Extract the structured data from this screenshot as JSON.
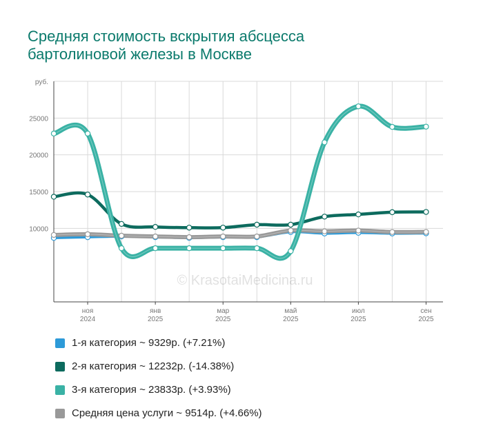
{
  "title_lines": [
    "Средняя стоимость вскрытия абсцесса",
    "бартолиновой железы в Москве"
  ],
  "watermark": "© KrasotaiMedicina.ru",
  "colors": {
    "title": "#0b7a6c",
    "grid": "#d9d9d9",
    "axis": "#444444",
    "tick": "#777777",
    "cat1": "#2d9ad8",
    "cat2": "#0d6b5e",
    "cat3": "#3ab2a5",
    "avg": "#999999"
  },
  "chart_data": {
    "type": "line",
    "title": "Средняя стоимость вскрытия абсцесса бартолиновой железы в Москве",
    "ylabel": "руб.",
    "ylim": [
      0,
      30000
    ],
    "yticks": [
      10000,
      15000,
      20000,
      25000
    ],
    "y_unit_label": "руб.",
    "x_range": [
      0,
      11.5
    ],
    "x": [
      0,
      1,
      2,
      3,
      4,
      5,
      6,
      7,
      8,
      9,
      10,
      11
    ],
    "xticks": [
      {
        "x": 1,
        "month": "ноя",
        "year": "2024"
      },
      {
        "x": 3,
        "month": "янв",
        "year": "2025"
      },
      {
        "x": 5,
        "month": "мар",
        "year": "2025"
      },
      {
        "x": 7,
        "month": "май",
        "year": "2025"
      },
      {
        "x": 9,
        "month": "июл",
        "year": "2025"
      },
      {
        "x": 11,
        "month": "сен",
        "year": "2025"
      }
    ],
    "grid": true,
    "legend": "bottom",
    "series": [
      {
        "name": "1-я категория",
        "color_key": "cat1",
        "width": 3.5,
        "values": [
          8700,
          8800,
          8900,
          8800,
          8700,
          8800,
          8800,
          9500,
          9300,
          9400,
          9300,
          9329
        ]
      },
      {
        "name": "Средняя цена услуги",
        "color_key": "avg",
        "width": 6,
        "values": [
          9100,
          9200,
          9000,
          8900,
          8800,
          8900,
          8900,
          9700,
          9600,
          9700,
          9500,
          9514
        ]
      },
      {
        "name": "2-я категория",
        "color_key": "cat2",
        "width": 4.5,
        "values": [
          14300,
          14600,
          10600,
          10200,
          10100,
          10100,
          10500,
          10500,
          11600,
          11900,
          12200,
          12232
        ]
      },
      {
        "name": "3-я категория",
        "color_key": "cat3",
        "width": 7,
        "values": [
          22900,
          22900,
          7300,
          7300,
          7300,
          7300,
          7300,
          6900,
          21700,
          26600,
          23800,
          23833
        ]
      }
    ]
  },
  "legend_items": [
    {
      "label": "1-я категория ~ 9329р. (+7.21%)",
      "color_key": "cat1"
    },
    {
      "label": "2-я категория ~ 12232р. (-14.38%)",
      "color_key": "cat2"
    },
    {
      "label": "3-я категория ~ 23833р. (+3.93%)",
      "color_key": "cat3"
    },
    {
      "label": "Средняя цена услуги ~ 9514р. (+4.66%)",
      "color_key": "avg"
    }
  ]
}
